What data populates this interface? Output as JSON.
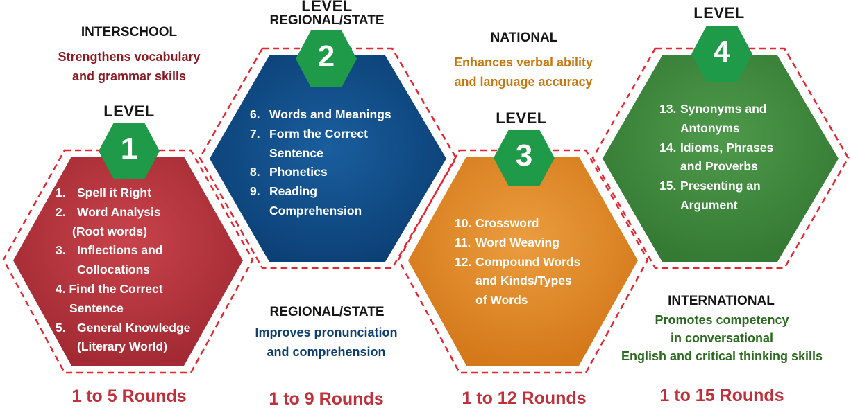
{
  "colors": {
    "red_hex": "#b5333d",
    "blue_hex": "#0f4c86",
    "orange_hex": "#e08a2a",
    "green_hex": "#3f8a3e",
    "badge": "#1f9a48",
    "border_dash": "#e52530",
    "rounds_text": "#c0303a"
  },
  "levels": [
    {
      "number": "1",
      "level_label": "LEVEL",
      "tier": "INTERSCHOOL",
      "description": [
        "Strengthens vocabulary",
        "and grammar skills"
      ],
      "description_color": "#8b1a22",
      "items": [
        [
          "1.",
          "Spell it Right"
        ],
        [
          "2.",
          "Word Analysis"
        ],
        [
          "",
          "(Root words)"
        ],
        [
          "3.",
          "Inflections and"
        ],
        [
          "",
          "Collocations"
        ],
        [
          "4. Find the Correct",
          ""
        ],
        [
          "",
          "Sentence"
        ],
        [
          "5.",
          "General Knowledge"
        ],
        [
          "",
          "(Literary World)"
        ]
      ],
      "rounds": "1 to 5 Rounds"
    },
    {
      "number": "2",
      "level_label": "LEVEL",
      "tier": "REGIONAL/STATE",
      "tier_top": "REGIONAL/STATE",
      "description": [
        "Improves pronunciation",
        "and comprehension"
      ],
      "description_color": "#0e3f70",
      "items": [
        [
          "6.",
          "Words and Meanings"
        ],
        [
          "7.",
          "Form the Correct"
        ],
        [
          "",
          "Sentence"
        ],
        [
          "8.",
          "Phonetics"
        ],
        [
          "9.",
          "Reading"
        ],
        [
          "",
          "Comprehension"
        ]
      ],
      "rounds": "1 to 9 Rounds"
    },
    {
      "number": "3",
      "level_label": "LEVEL",
      "tier": "NATIONAL",
      "description": [
        "Enhances verbal ability",
        "and language accuracy"
      ],
      "description_color": "#c47812",
      "items": [
        [
          "10.",
          "Crossword"
        ],
        [
          "11.",
          "Word Weaving"
        ],
        [
          "12.",
          "Compound Words"
        ],
        [
          "",
          "and Kinds/Types"
        ],
        [
          "",
          "of Words"
        ]
      ],
      "rounds": "1 to 12 Rounds"
    },
    {
      "number": "4",
      "level_label": "LEVEL",
      "tier": "INTERNATIONAL",
      "description": [
        "Promotes competency",
        "in conversational",
        "English and critical thinking skills"
      ],
      "description_color": "#2a6a1e",
      "items": [
        [
          "13.",
          "Synonyms and"
        ],
        [
          "",
          "Antonyms"
        ],
        [
          "14.",
          "Idioms, Phrases"
        ],
        [
          "",
          "and Proverbs"
        ],
        [
          "15.",
          "Presenting an"
        ],
        [
          "",
          "Argument"
        ]
      ],
      "rounds": "1 to 15 Rounds"
    }
  ]
}
